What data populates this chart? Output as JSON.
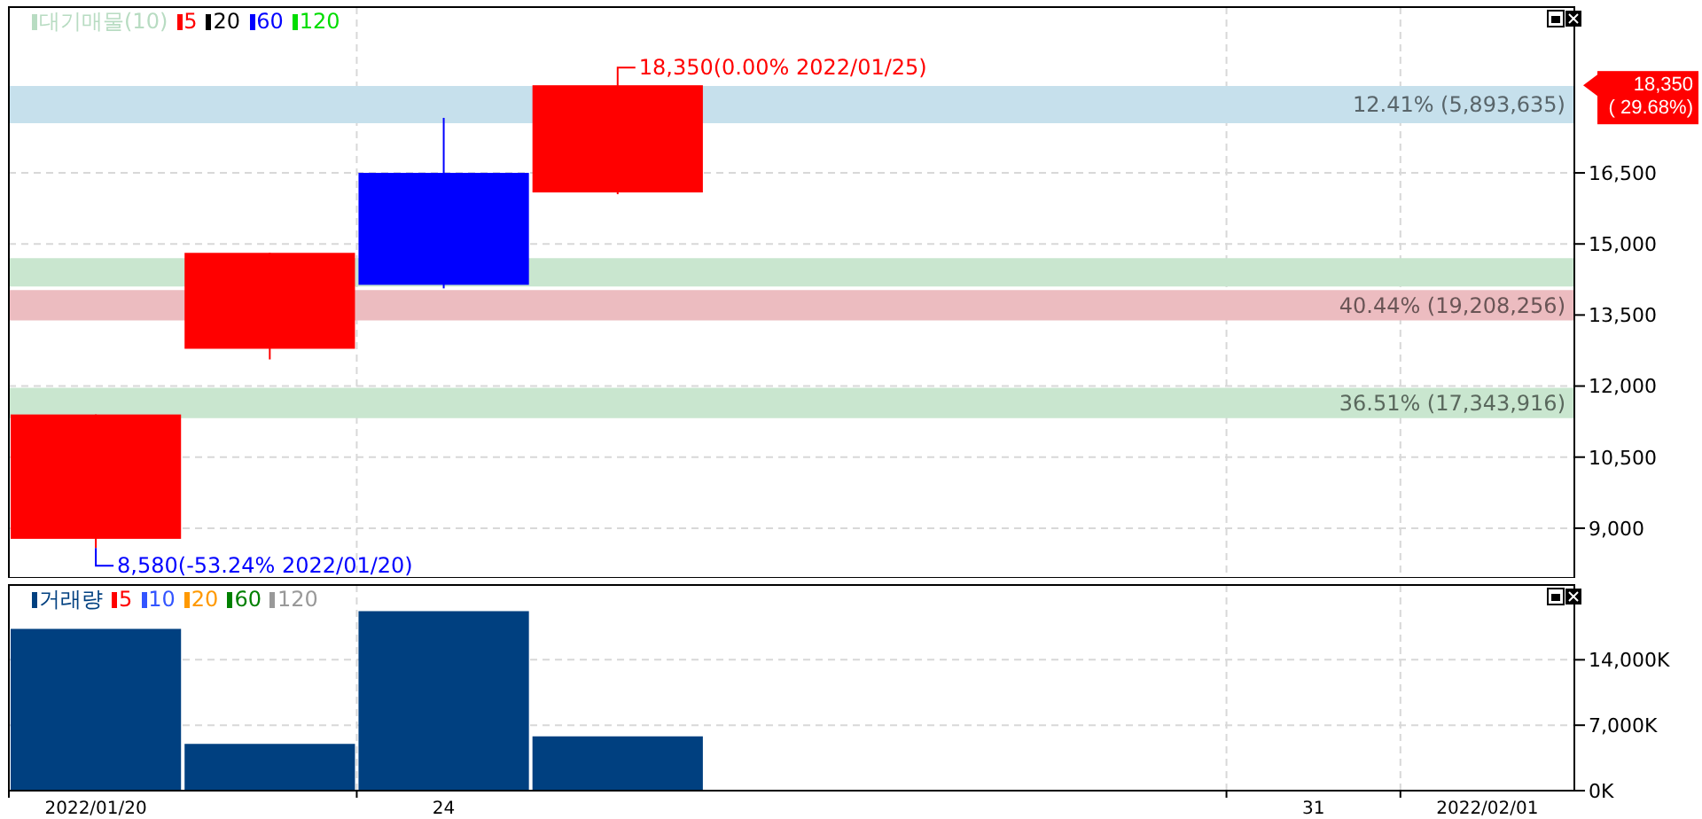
{
  "chart_data": [
    {
      "type": "candlestick",
      "categories": [
        "2022/01/20",
        null,
        "24",
        null,
        null,
        null,
        null,
        "31",
        "2022/02/01"
      ],
      "ohlc": [
        [
          8775,
          11400,
          8580,
          11400
        ],
        [
          12787,
          14812,
          12562,
          14812
        ],
        [
          16500,
          17662,
          14062,
          14137
        ],
        [
          16087,
          18350,
          16050,
          18350
        ],
        null,
        null,
        null,
        null,
        null
      ],
      "series": [
        {
          "name": "대기매물(10)",
          "color": "#b8dcc2",
          "values": [
            null,
            null,
            null,
            null,
            null,
            null,
            null,
            null,
            null
          ]
        },
        {
          "name": "5",
          "color": "#ff0000",
          "values": [
            null,
            null,
            null,
            null,
            null,
            null,
            null,
            null,
            null
          ]
        },
        {
          "name": "20",
          "color": "#000000",
          "values": [
            null,
            null,
            null,
            null,
            null,
            null,
            null,
            null,
            null
          ]
        },
        {
          "name": "60",
          "color": "#0000ff",
          "values": [
            null,
            null,
            null,
            null,
            null,
            null,
            null,
            null,
            null
          ]
        },
        {
          "name": "120",
          "color": "#00dd00",
          "values": [
            null,
            null,
            null,
            null,
            null,
            null,
            null,
            null,
            null
          ]
        }
      ],
      "ylim": [
        7950,
        20000
      ],
      "yticks": [
        {
          "value": 9000,
          "label": "9,000"
        },
        {
          "value": 10500,
          "label": "10,500"
        },
        {
          "value": 12000,
          "label": "12,000"
        },
        {
          "value": 13500,
          "label": "13,500"
        },
        {
          "value": 15000,
          "label": "15,000"
        },
        {
          "value": 16500,
          "label": "16,500"
        }
      ],
      "grid": true,
      "legend": "top left",
      "tick_labels": "y",
      "bands": [
        {
          "axis": "y",
          "from": 17550,
          "to": 18337,
          "label": "12.41% (5,893,635)",
          "color": "#c6e0ec"
        },
        {
          "axis": "y",
          "from": 14100,
          "to": 14700,
          "color": "#c9e6cf"
        },
        {
          "axis": "y",
          "from": 13387,
          "to": 14025,
          "label": "40.44% (19,208,256)",
          "color": "#ecbcc0"
        },
        {
          "axis": "y",
          "from": 11325,
          "to": 11962,
          "label": "36.51% (17,343,916)",
          "color": "#c9e6cf"
        }
      ],
      "annotations": [
        {
          "text": "18,350(0.00% 2022/01/25)",
          "y": 18350
        },
        "8,580(-53.24% 2022/01/20)",
        "18,350\n( 29.68%)"
      ]
    },
    {
      "type": "bar",
      "categories": [
        "2022/01/20",
        null,
        "24",
        null,
        null,
        null,
        null,
        "31",
        "2022/02/01"
      ],
      "series": [
        {
          "name": "거래량",
          "color": "#004080",
          "values": [
            17300,
            5000,
            19200,
            5800,
            null,
            null,
            null,
            null,
            null
          ]
        },
        {
          "type": "line",
          "name": "5",
          "color": "#ff0000",
          "values": [
            null,
            null,
            null,
            null,
            null,
            null,
            null,
            null,
            null
          ]
        },
        {
          "type": "line",
          "name": "10",
          "color": "#3355ff",
          "values": [
            null,
            null,
            null,
            null,
            null,
            null,
            null,
            null,
            null
          ]
        },
        {
          "type": "line",
          "name": "20",
          "color": "#ff9900",
          "values": [
            null,
            null,
            null,
            null,
            null,
            null,
            null,
            null,
            null
          ]
        },
        {
          "type": "line",
          "name": "60",
          "color": "#008000",
          "values": [
            null,
            null,
            null,
            null,
            null,
            null,
            null,
            null,
            null
          ]
        },
        {
          "type": "line",
          "name": "120",
          "color": "#999999",
          "values": [
            null,
            null,
            null,
            null,
            null,
            null,
            null,
            null,
            null
          ]
        }
      ],
      "ylim": [
        0,
        22000
      ],
      "yticks": [
        {
          "value": 0,
          "label": "0K"
        },
        {
          "value": 7000,
          "label": "7,000K"
        },
        {
          "value": 14000,
          "label": "14,000K"
        }
      ],
      "grid": true,
      "legend": "top left"
    }
  ]
}
